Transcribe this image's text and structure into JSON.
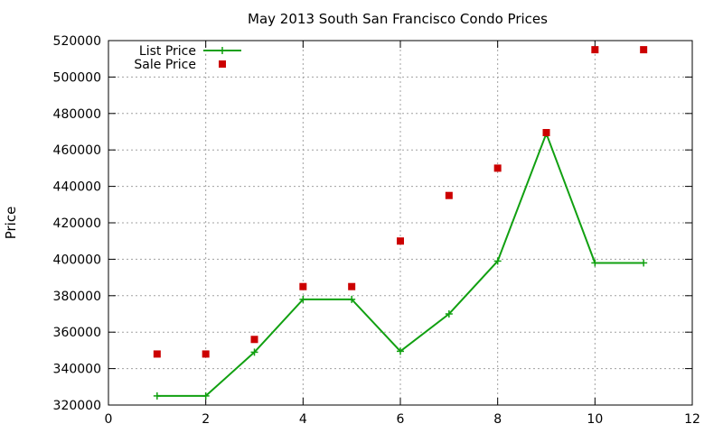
{
  "chart_data": {
    "type": "line",
    "title": "May 2013 South San Francisco Condo Prices",
    "xlabel": "",
    "ylabel": "Price",
    "xlim": [
      0,
      12
    ],
    "ylim": [
      320000,
      520000
    ],
    "xticks": [
      0,
      2,
      4,
      6,
      8,
      10,
      12
    ],
    "yticks": [
      320000,
      340000,
      360000,
      380000,
      400000,
      420000,
      440000,
      460000,
      480000,
      500000,
      520000
    ],
    "grid": true,
    "legend_position": "top-left",
    "series": [
      {
        "name": "List Price",
        "style": "line+cross",
        "color": "#11a011",
        "x": [
          1,
          2,
          3,
          4,
          5,
          6,
          7,
          8,
          9,
          10,
          11
        ],
        "y": [
          325000,
          325000,
          349000,
          378000,
          378000,
          349500,
          370000,
          399000,
          469000,
          398000,
          398000
        ]
      },
      {
        "name": "Sale Price",
        "style": "square-points",
        "color": "#cc0000",
        "x": [
          1,
          2,
          3,
          4,
          5,
          6,
          7,
          8,
          9,
          10,
          11
        ],
        "y": [
          348000,
          348000,
          356000,
          385000,
          385000,
          410000,
          435000,
          450000,
          469500,
          515000,
          515000
        ]
      }
    ]
  }
}
